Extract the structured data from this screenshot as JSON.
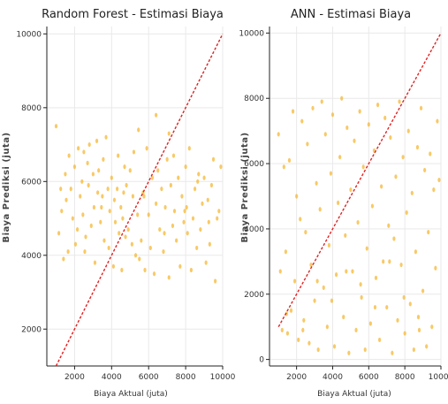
{
  "chart_data": [
    {
      "type": "scatter",
      "title": "Random Forest - Estimasi Biaya",
      "xlabel": "Biaya Aktual (juta)",
      "ylabel": "Biaya Prediksi (juta)",
      "xlim": [
        500,
        10000
      ],
      "ylim": [
        1000,
        10200
      ],
      "xticks": [
        2000,
        4000,
        6000,
        8000,
        10000
      ],
      "yticks": [
        2000,
        4000,
        6000,
        8000,
        10000
      ],
      "grid": true,
      "point_color": "#f5b733",
      "reference_line": {
        "style": "dashed",
        "color": "#e02020",
        "from": [
          1000,
          1000
        ],
        "to": [
          10000,
          10000
        ]
      },
      "points": {
        "x": [
          1000,
          1150,
          1300,
          1400,
          1500,
          1550,
          1650,
          1700,
          1800,
          1900,
          2000,
          2050,
          2150,
          2200,
          2300,
          2400,
          2450,
          2500,
          2600,
          2700,
          2750,
          2800,
          2900,
          3000,
          3050,
          3100,
          3200,
          3250,
          3300,
          3400,
          3500,
          3550,
          3600,
          3700,
          3800,
          3850,
          3900,
          4000,
          4100,
          4150,
          4200,
          4300,
          4350,
          4400,
          4500,
          4550,
          4600,
          4700,
          4750,
          4800,
          4900,
          5000,
          5100,
          5150,
          5200,
          5300,
          5400,
          5450,
          5500,
          5600,
          5700,
          5800,
          5900,
          6000,
          6100,
          6200,
          6300,
          6400,
          6500,
          6600,
          6700,
          6800,
          6900,
          7000,
          7100,
          7200,
          7300,
          7350,
          7400,
          7500,
          7600,
          7700,
          7800,
          7900,
          8000,
          8050,
          8100,
          8200,
          8300,
          8400,
          8500,
          8600,
          8700,
          8800,
          8900,
          9000,
          9100,
          9200,
          9300,
          9400,
          9500,
          9600,
          9700,
          9800,
          9900,
          1250,
          2550,
          3450,
          4650,
          5750,
          6850,
          7950,
          8650,
          9250,
          6400,
          7100
        ],
        "y": [
          7500,
          4600,
          5200,
          3900,
          6200,
          5500,
          4100,
          6700,
          5800,
          5000,
          6400,
          4300,
          4700,
          6900,
          5600,
          6000,
          5100,
          6800,
          4500,
          6500,
          5900,
          7000,
          4800,
          6200,
          5300,
          3800,
          7100,
          5700,
          6300,
          4900,
          5600,
          6600,
          4400,
          7200,
          5800,
          4200,
          5200,
          6100,
          3700,
          5500,
          4900,
          5800,
          6700,
          4600,
          5300,
          3600,
          5000,
          6400,
          4500,
          5900,
          4700,
          6300,
          4300,
          5600,
          6800,
          4000,
          5100,
          7400,
          3900,
          4400,
          5700,
          3600,
          6900,
          5100,
          4200,
          6100,
          3500,
          5400,
          6300,
          4700,
          5800,
          4100,
          5300,
          6600,
          3400,
          5900,
          4800,
          6700,
          5200,
          4400,
          6100,
          3700,
          5600,
          4900,
          6400,
          5300,
          4600,
          6900,
          3600,
          5000,
          5800,
          4200,
          6200,
          4700,
          5400,
          6100,
          3800,
          5500,
          4300,
          5900,
          6600,
          3300,
          5000,
          5200,
          6400,
          5800,
          4100,
          5300,
          5700,
          5600,
          4600,
          5200,
          6000,
          4900,
          7800,
          7300
        ]
      }
    },
    {
      "type": "scatter",
      "title": "ANN - Estimasi Biaya",
      "xlabel": "Biaya Aktual (juta)",
      "ylabel": "Biaya Prediksi (juta)",
      "xlim": [
        500,
        10000
      ],
      "ylim": [
        -200,
        10200
      ],
      "xticks": [
        2000,
        4000,
        6000,
        8000,
        10000
      ],
      "yticks": [
        0,
        2000,
        4000,
        6000,
        8000,
        10000
      ],
      "grid": true,
      "point_color": "#f5b733",
      "reference_line": {
        "style": "dashed",
        "color": "#e02020",
        "from": [
          1000,
          1000
        ],
        "to": [
          10000,
          10000
        ]
      },
      "points": {
        "x": [
          1000,
          1100,
          1200,
          1300,
          1400,
          1500,
          1600,
          1700,
          1800,
          1900,
          2000,
          2100,
          2200,
          2300,
          2400,
          2500,
          2600,
          2700,
          2800,
          2900,
          3000,
          3100,
          3200,
          3300,
          3400,
          3500,
          3600,
          3700,
          3800,
          3900,
          4000,
          4100,
          4200,
          4300,
          4400,
          4500,
          4600,
          4700,
          4800,
          4900,
          5000,
          5100,
          5200,
          5300,
          5400,
          5500,
          5600,
          5700,
          5800,
          5900,
          6000,
          6100,
          6200,
          6300,
          6400,
          6500,
          6600,
          6700,
          6800,
          6900,
          7000,
          7100,
          7200,
          7300,
          7400,
          7500,
          7600,
          7700,
          7800,
          7900,
          8000,
          8100,
          8200,
          8300,
          8400,
          8500,
          8600,
          8700,
          8800,
          8900,
          9000,
          9100,
          9200,
          9300,
          9400,
          9500,
          9600,
          9700,
          9800,
          9900,
          1450,
          2350,
          3150,
          3950,
          4750,
          5550,
          6350,
          7150,
          7950,
          8750
        ],
        "y": [
          6900,
          2700,
          900,
          5900,
          3300,
          800,
          6100,
          1500,
          7600,
          2400,
          5000,
          600,
          4300,
          7300,
          1200,
          3900,
          6600,
          500,
          2900,
          7700,
          1800,
          5400,
          300,
          4600,
          7900,
          2200,
          6900,
          1000,
          3500,
          5700,
          7500,
          400,
          2600,
          4800,
          6200,
          8000,
          1300,
          3800,
          7100,
          200,
          5200,
          2700,
          6700,
          900,
          4200,
          7600,
          1900,
          5900,
          300,
          3400,
          7200,
          1100,
          4700,
          6400,
          2500,
          7800,
          600,
          5300,
          3000,
          7400,
          1600,
          4100,
          6800,
          200,
          3700,
          5600,
          1200,
          7900,
          2900,
          6200,
          800,
          4500,
          7000,
          1700,
          5100,
          300,
          3300,
          6500,
          900,
          7700,
          2100,
          5800,
          400,
          3900,
          6300,
          1000,
          5200,
          2800,
          7300,
          5500,
          1400,
          900,
          2400,
          1800,
          2700,
          2300,
          1600,
          3000,
          1900,
          1300
        ]
      }
    }
  ]
}
